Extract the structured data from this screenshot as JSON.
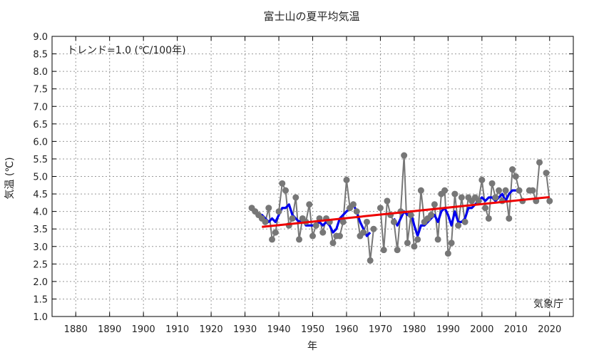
{
  "chart_data": {
    "type": "line",
    "title": "富士山の夏平均気温",
    "xlabel": "年",
    "ylabel": "気温 (℃)",
    "xlim": [
      1873,
      2027
    ],
    "ylim": [
      1.0,
      9.0
    ],
    "x_ticks": [
      1880,
      1890,
      1900,
      1910,
      1920,
      1930,
      1940,
      1950,
      1960,
      1970,
      1980,
      1990,
      2000,
      2010,
      2020
    ],
    "y_ticks": [
      "1.0",
      "1.5",
      "2.0",
      "2.5",
      "3.0",
      "3.5",
      "4.0",
      "4.5",
      "5.0",
      "5.5",
      "6.0",
      "6.5",
      "7.0",
      "7.5",
      "8.0",
      "8.5",
      "9.0"
    ],
    "grid": true,
    "trend_text": "トレンド=1.0 (℃/100年)",
    "credit": "気象庁",
    "colors": {
      "annual": "#777777",
      "moving_average": "#0000ee",
      "trend": "#ee0000"
    },
    "series": [
      {
        "kind": "annual",
        "x": [
          1932,
          1933,
          1934,
          1935,
          1936,
          1937,
          1938,
          1939,
          1940,
          1941,
          1942,
          1943,
          1944,
          1945,
          1946,
          1947,
          1948,
          1949,
          1950,
          1951,
          1952,
          1953,
          1954,
          1955,
          1956,
          1957,
          1958,
          1959,
          1960,
          1961,
          1962,
          1963,
          1964,
          1965,
          1966,
          1967,
          1968,
          1970,
          1971,
          1972,
          1973,
          1974,
          1975,
          1976,
          1977,
          1978,
          1979,
          1980,
          1981,
          1982,
          1983,
          1984,
          1985,
          1986,
          1987,
          1988,
          1989,
          1990,
          1991,
          1992,
          1993,
          1994,
          1995,
          1996,
          1997,
          1998,
          1999,
          2000,
          2001,
          2002,
          2003,
          2004,
          2005,
          2006,
          2007,
          2008,
          2009,
          2010,
          2011,
          2012,
          2013,
          2014,
          2015,
          2016,
          2017,
          2018,
          2019,
          2020,
          2021
        ],
        "y": [
          4.1,
          4.0,
          3.9,
          3.8,
          3.7,
          4.1,
          3.2,
          3.4,
          4.0,
          4.8,
          4.6,
          3.6,
          3.8,
          4.4,
          3.2,
          3.8,
          3.7,
          4.2,
          3.3,
          3.6,
          3.8,
          3.4,
          3.8,
          3.7,
          3.1,
          3.3,
          3.3,
          3.7,
          4.9,
          4.1,
          4.2,
          4.0,
          3.3,
          3.4,
          3.7,
          2.6,
          3.5,
          4.1,
          2.9,
          4.3,
          3.9,
          3.7,
          2.9,
          4.0,
          5.6,
          3.1,
          3.9,
          3.0,
          3.2,
          4.6,
          3.7,
          3.8,
          3.9,
          4.2,
          3.2,
          4.5,
          4.6,
          2.8,
          3.1,
          4.5,
          3.6,
          4.4,
          3.7,
          4.4,
          4.3,
          4.4,
          4.3,
          4.9,
          4.1,
          3.8,
          4.8,
          4.4,
          4.6,
          4.3,
          4.6,
          3.8,
          5.2,
          5.0,
          4.6,
          4.3,
          null,
          4.6,
          4.6,
          4.3,
          5.4,
          null,
          5.1,
          4.3,
          null
        ]
      },
      {
        "kind": "moving_average",
        "x": [
          1934,
          1935,
          1936,
          1937,
          1938,
          1939,
          1940,
          1941,
          1942,
          1943,
          1944,
          1945,
          1946,
          1947,
          1948,
          1949,
          1950,
          1951,
          1952,
          1953,
          1954,
          1955,
          1956,
          1957,
          1958,
          1959,
          1960,
          1961,
          1962,
          1963,
          1964,
          1965,
          1966,
          1967,
          1974,
          1975,
          1976,
          1977,
          1978,
          1979,
          1980,
          1981,
          1982,
          1983,
          1984,
          1985,
          1986,
          1987,
          1988,
          1989,
          1990,
          1991,
          1992,
          1993,
          1994,
          1995,
          1996,
          1997,
          1998,
          1999,
          2000,
          2001,
          2002,
          2003,
          2004,
          2005,
          2006,
          2007,
          2008,
          2009,
          2010,
          2011
        ],
        "y": [
          3.9,
          3.9,
          3.8,
          3.7,
          3.8,
          3.7,
          3.9,
          4.1,
          4.1,
          4.2,
          3.9,
          3.8,
          3.7,
          3.8,
          3.6,
          3.6,
          3.6,
          3.6,
          3.7,
          3.6,
          3.7,
          3.6,
          3.4,
          3.5,
          3.8,
          3.9,
          4.0,
          4.1,
          4.2,
          4.0,
          3.7,
          3.5,
          3.3,
          3.4,
          3.8,
          3.6,
          3.8,
          4.0,
          3.9,
          4.0,
          3.6,
          3.3,
          3.6,
          3.6,
          3.7,
          3.8,
          3.9,
          3.7,
          4.0,
          4.1,
          3.9,
          3.6,
          4.0,
          3.7,
          3.7,
          3.8,
          4.1,
          4.1,
          4.2,
          4.3,
          4.4,
          4.3,
          4.4,
          4.4,
          4.3,
          4.4,
          4.5,
          4.3,
          4.5,
          4.6,
          4.6,
          4.6
        ]
      },
      {
        "kind": "trend",
        "x": [
          1935,
          2020
        ],
        "y": [
          3.56,
          4.41
        ]
      }
    ]
  }
}
